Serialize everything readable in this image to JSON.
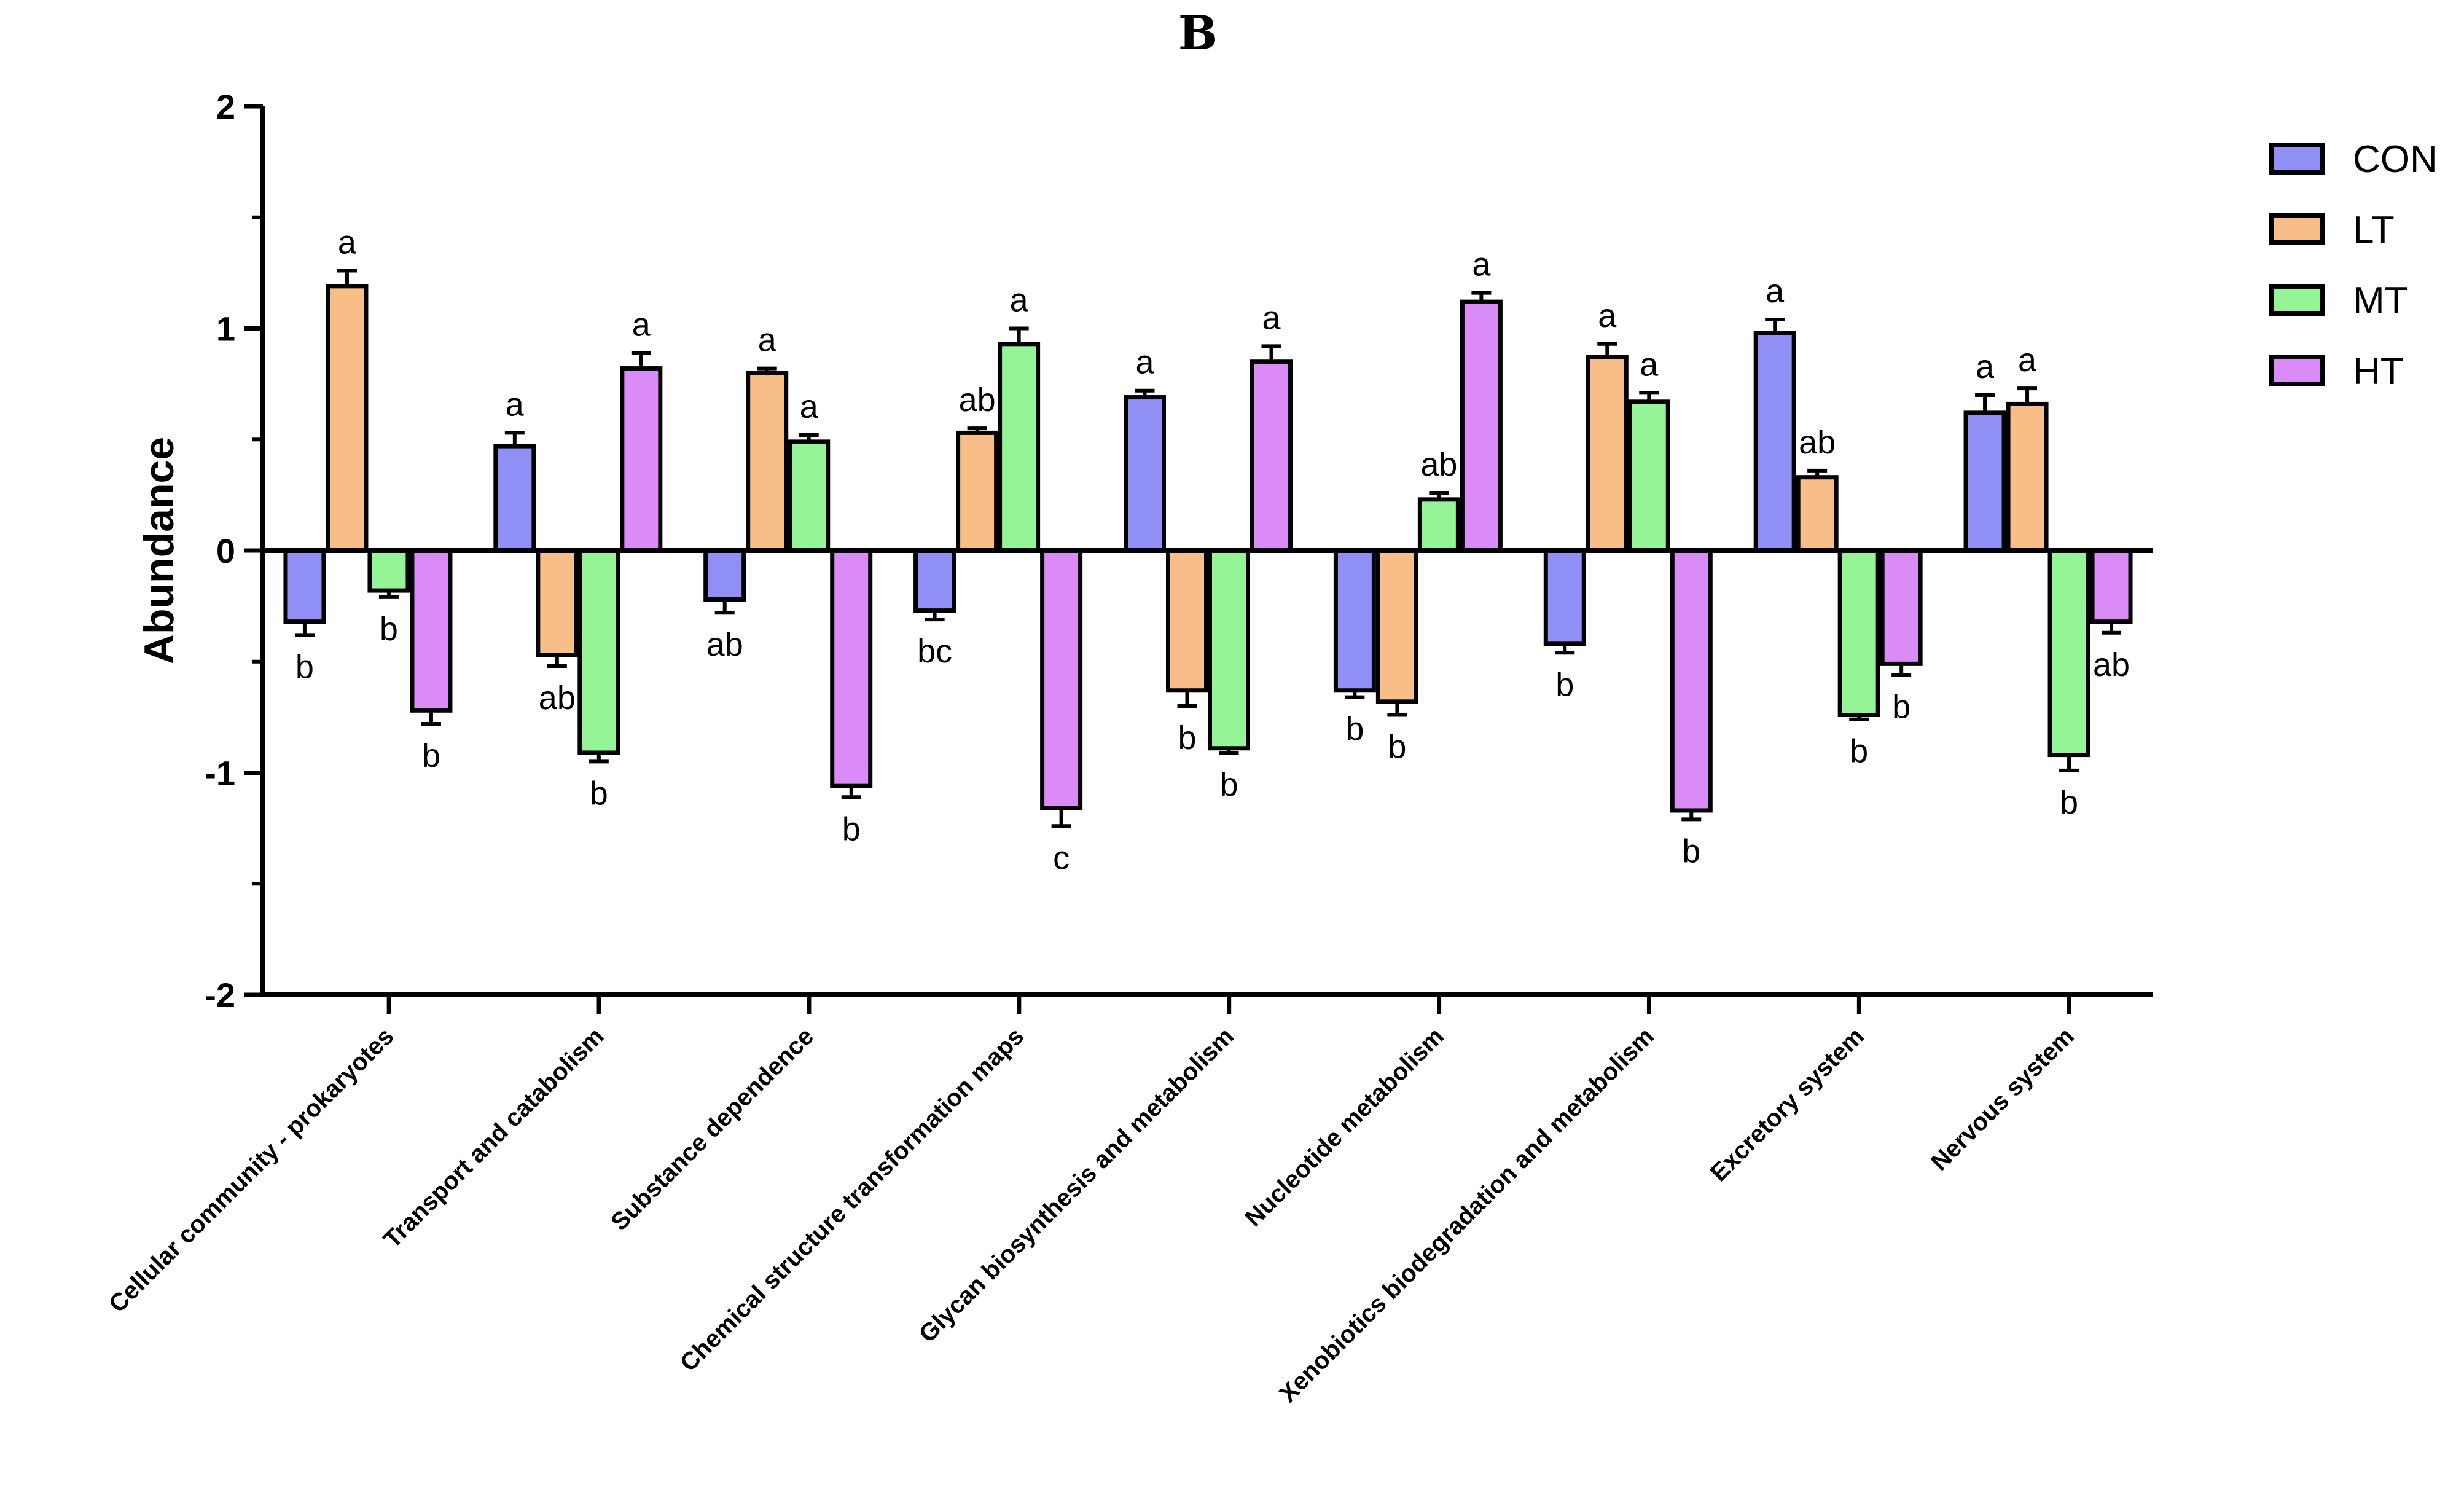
{
  "chart_data": {
    "type": "bar",
    "title": "B",
    "xlabel": "",
    "ylabel": "Abundance",
    "ylim": [
      -2,
      2
    ],
    "yticks": [
      "-2",
      "-1",
      "0",
      "1",
      "2"
    ],
    "legend_position": "top-right",
    "categories": [
      "Cellular community - prokaryotes",
      "Transport and catabolism",
      "Substance dependence",
      "Chemical structure transformation maps",
      "Glycan biosynthesis and metabolism",
      "Nucleotide metabolism",
      "Xenobiotics biodegradation and metabolism",
      "Excretory system",
      "Nervous system"
    ],
    "series": [
      {
        "name": "CON",
        "color": "#8f8ff5",
        "values": [
          -0.32,
          0.47,
          -0.22,
          -0.27,
          0.69,
          -0.63,
          -0.42,
          0.98,
          0.62
        ],
        "errors": [
          0.06,
          0.06,
          0.06,
          0.04,
          0.03,
          0.03,
          0.04,
          0.06,
          0.08
        ],
        "letters": [
          "b",
          "a",
          "ab",
          "bc",
          "a",
          "b",
          "b",
          "a",
          "a"
        ]
      },
      {
        "name": "LT",
        "color": "#f7be88",
        "values": [
          1.19,
          -0.47,
          0.8,
          0.53,
          -0.63,
          -0.68,
          0.87,
          0.33,
          0.66
        ],
        "errors": [
          0.07,
          0.05,
          0.02,
          0.02,
          0.07,
          0.06,
          0.06,
          0.03,
          0.07
        ],
        "letters": [
          "a",
          "ab",
          "a",
          "ab",
          "b",
          "b",
          "a",
          "ab",
          "a"
        ]
      },
      {
        "name": "MT",
        "color": "#95f495",
        "values": [
          -0.18,
          -0.91,
          0.49,
          0.93,
          -0.89,
          0.23,
          0.67,
          -0.74,
          -0.92
        ],
        "errors": [
          0.03,
          0.04,
          0.03,
          0.07,
          0.02,
          0.03,
          0.04,
          0.02,
          0.07
        ],
        "letters": [
          "b",
          "b",
          "a",
          "a",
          "b",
          "ab",
          "a",
          "b",
          "b"
        ]
      },
      {
        "name": "HT",
        "color": "#da8bf5",
        "values": [
          -0.72,
          0.82,
          -1.06,
          -1.16,
          0.85,
          1.12,
          -1.17,
          -0.51,
          -0.32
        ],
        "errors": [
          0.06,
          0.07,
          0.05,
          0.08,
          0.07,
          0.04,
          0.04,
          0.05,
          0.05
        ],
        "letters": [
          "b",
          "a",
          "b",
          "c",
          "a",
          "a",
          "b",
          "b",
          "ab"
        ]
      }
    ]
  }
}
